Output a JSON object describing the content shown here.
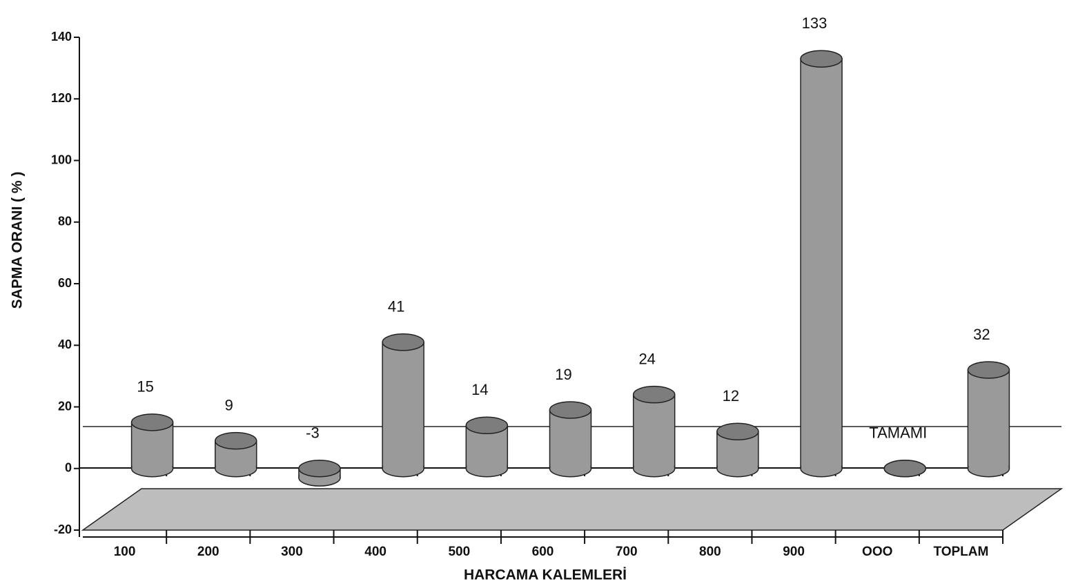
{
  "chart_data": {
    "type": "bar",
    "xlabel": "HARCAMA KALEMLERİ",
    "ylabel": "SAPMA ORANI ( % )",
    "categories": [
      "100",
      "200",
      "300",
      "400",
      "500",
      "600",
      "700",
      "800",
      "900",
      "OOO",
      "TOPLAM"
    ],
    "values": [
      15,
      9,
      -3,
      41,
      14,
      19,
      24,
      12,
      133,
      0,
      32
    ],
    "value_labels": [
      "15",
      "9",
      "-3",
      "41",
      "14",
      "19",
      "24",
      "12",
      "133",
      "TAMAMI",
      "32"
    ],
    "color": "#9a9a9a",
    "ylim": [
      -20,
      140
    ],
    "yticks": [
      -20,
      0,
      20,
      40,
      60,
      80,
      100,
      120,
      140
    ]
  }
}
